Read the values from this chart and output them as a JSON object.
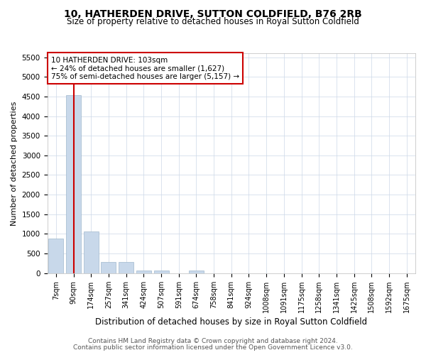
{
  "title": "10, HATHERDEN DRIVE, SUTTON COLDFIELD, B76 2RB",
  "subtitle": "Size of property relative to detached houses in Royal Sutton Coldfield",
  "xlabel": "Distribution of detached houses by size in Royal Sutton Coldfield",
  "ylabel": "Number of detached properties",
  "footer_line1": "Contains HM Land Registry data © Crown copyright and database right 2024.",
  "footer_line2": "Contains public sector information licensed under the Open Government Licence v3.0.",
  "annotation_title": "10 HATHERDEN DRIVE: 103sqm",
  "annotation_line1": "← 24% of detached houses are smaller (1,627)",
  "annotation_line2": "75% of semi-detached houses are larger (5,157) →",
  "bar_color": "#c8d8ea",
  "bar_edge_color": "#a0b8cc",
  "vline_color": "#cc0000",
  "annotation_edge_color": "#cc0000",
  "background_color": "#ffffff",
  "grid_color": "#ccd8e8",
  "categories": [
    "7sqm",
    "90sqm",
    "174sqm",
    "257sqm",
    "341sqm",
    "424sqm",
    "507sqm",
    "591sqm",
    "674sqm",
    "758sqm",
    "841sqm",
    "924sqm",
    "1008sqm",
    "1091sqm",
    "1175sqm",
    "1258sqm",
    "1341sqm",
    "1425sqm",
    "1508sqm",
    "1592sqm",
    "1675sqm"
  ],
  "values": [
    880,
    4540,
    1060,
    280,
    280,
    75,
    65,
    0,
    65,
    0,
    0,
    0,
    0,
    0,
    0,
    0,
    0,
    0,
    0,
    0,
    0
  ],
  "ylim": [
    0,
    5600
  ],
  "yticks": [
    0,
    500,
    1000,
    1500,
    2000,
    2500,
    3000,
    3500,
    4000,
    4500,
    5000,
    5500
  ],
  "vline_x": 1.0,
  "figsize": [
    6.0,
    5.0
  ],
  "dpi": 100
}
